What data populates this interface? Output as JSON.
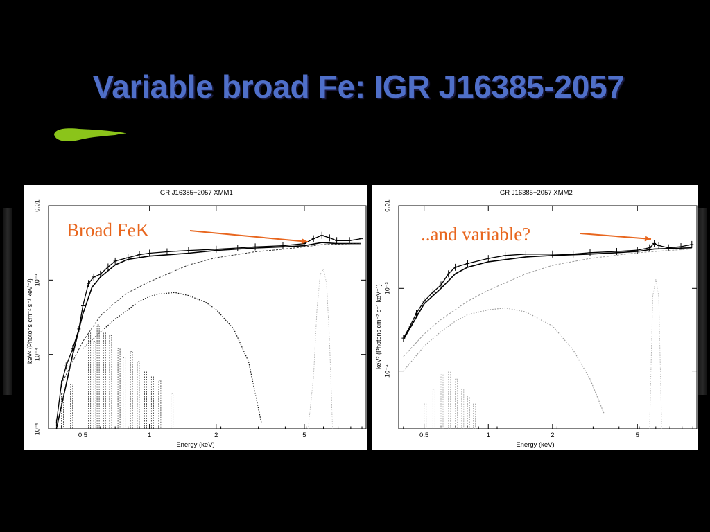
{
  "slide": {
    "title": "Variable broad Fe: IGR J16385-2057",
    "colors": {
      "background": "#000000",
      "title": "#4f6fc9",
      "brush": "#8bc41a",
      "annotation": "#e8661e"
    }
  },
  "chart_data": [
    {
      "type": "line",
      "title": "IGR J16385−2057 XMM1",
      "xlabel": "Energy (keV)",
      "ylabel": "keV² (Photons cm⁻² s⁻¹ keV⁻¹)",
      "xscale": "log",
      "yscale": "log",
      "xlim": [
        0.35,
        9.5
      ],
      "ylim": [
        1e-05,
        0.01
      ],
      "xticks": [
        0.5,
        1,
        2,
        5
      ],
      "xtick_labels": [
        "0.5",
        "1",
        "2",
        "5"
      ],
      "yticks": [
        1e-05,
        0.0001,
        0.001,
        0.01
      ],
      "ytick_labels": [
        "10⁻⁵",
        "10⁻⁴",
        "10⁻³",
        "0.01"
      ],
      "annotation": "Broad FeK",
      "series": [
        {
          "role": "data",
          "points": [
            [
              0.38,
              1.2e-05
            ],
            [
              0.4,
              4e-05
            ],
            [
              0.42,
              7e-05
            ],
            [
              0.45,
              0.00012
            ],
            [
              0.48,
              0.00022
            ],
            [
              0.5,
              0.00045
            ],
            [
              0.53,
              0.0009
            ],
            [
              0.56,
              0.0011
            ],
            [
              0.6,
              0.0012
            ],
            [
              0.65,
              0.0015
            ],
            [
              0.7,
              0.0018
            ],
            [
              0.8,
              0.002
            ],
            [
              0.9,
              0.0022
            ],
            [
              1.0,
              0.0023
            ],
            [
              1.2,
              0.0024
            ],
            [
              1.5,
              0.0025
            ],
            [
              2.0,
              0.0026
            ],
            [
              2.5,
              0.0027
            ],
            [
              3.0,
              0.0028
            ],
            [
              4.0,
              0.0029
            ],
            [
              5.0,
              0.0031
            ],
            [
              5.5,
              0.0036
            ],
            [
              6.0,
              0.004
            ],
            [
              6.5,
              0.0037
            ],
            [
              7.0,
              0.0034
            ],
            [
              8.0,
              0.0034
            ],
            [
              9.0,
              0.0036
            ]
          ]
        },
        {
          "role": "model",
          "points": [
            [
              0.38,
              1e-05
            ],
            [
              0.45,
              0.0001
            ],
            [
              0.5,
              0.00035
            ],
            [
              0.55,
              0.0008
            ],
            [
              0.6,
              0.0011
            ],
            [
              0.7,
              0.0016
            ],
            [
              0.8,
              0.0019
            ],
            [
              1.0,
              0.0021
            ],
            [
              1.5,
              0.0023
            ],
            [
              2.0,
              0.0025
            ],
            [
              3.0,
              0.0027
            ],
            [
              4.0,
              0.0028
            ],
            [
              5.0,
              0.0029
            ],
            [
              6.0,
              0.0032
            ],
            [
              7.0,
              0.0031
            ],
            [
              9.0,
              0.0031
            ]
          ]
        },
        {
          "role": "powerlaw",
          "points": [
            [
              0.4,
              4e-05
            ],
            [
              0.5,
              0.00015
            ],
            [
              0.6,
              0.00033
            ],
            [
              0.7,
              0.0005
            ],
            [
              0.8,
              0.00068
            ],
            [
              1.0,
              0.00095
            ],
            [
              1.5,
              0.0016
            ],
            [
              2.0,
              0.002
            ],
            [
              3.0,
              0.0024
            ],
            [
              4.0,
              0.0026
            ],
            [
              5.0,
              0.0028
            ],
            [
              6.0,
              0.003
            ],
            [
              9.0,
              0.0031
            ]
          ]
        },
        {
          "role": "blackbody",
          "points": [
            [
              0.5,
              0.00012
            ],
            [
              0.6,
              0.0002
            ],
            [
              0.7,
              0.0003
            ],
            [
              0.8,
              0.0004
            ],
            [
              0.9,
              0.00052
            ],
            [
              1.0,
              0.0006
            ],
            [
              1.1,
              0.00065
            ],
            [
              1.3,
              0.00068
            ],
            [
              1.5,
              0.00062
            ],
            [
              1.8,
              0.0005
            ],
            [
              2.0,
              0.0004
            ],
            [
              2.4,
              0.00022
            ],
            [
              2.8,
              8e-05
            ],
            [
              3.2,
              1.2e-05
            ]
          ]
        },
        {
          "role": "lines",
          "points": [
            [
              0.4,
              3e-05
            ],
            [
              0.44,
              4e-05
            ],
            [
              0.5,
              6e-05
            ],
            [
              0.53,
              0.0002
            ],
            [
              0.56,
              0.00015
            ],
            [
              0.58,
              0.00025
            ],
            [
              0.62,
              0.0002
            ],
            [
              0.66,
              0.00018
            ],
            [
              0.72,
              0.00012
            ],
            [
              0.76,
              9e-05
            ],
            [
              0.82,
              0.00011
            ],
            [
              0.88,
              8e-05
            ],
            [
              0.95,
              6e-05
            ],
            [
              1.02,
              5e-05
            ],
            [
              1.1,
              4.5e-05
            ],
            [
              1.25,
              3e-05
            ]
          ]
        },
        {
          "role": "iron_line",
          "points": [
            [
              5.2,
              1e-05
            ],
            [
              5.5,
              5e-05
            ],
            [
              5.7,
              0.0004
            ],
            [
              5.9,
              0.0012
            ],
            [
              6.1,
              0.0014
            ],
            [
              6.3,
              0.0009
            ],
            [
              6.5,
              0.00015
            ],
            [
              6.7,
              1e-05
            ]
          ]
        }
      ]
    },
    {
      "type": "line",
      "title": "IGR J16385−2057 XMM2",
      "xlabel": "Energy (keV)",
      "ylabel": "keV² (Photons cm⁻² s⁻¹ keV⁻¹)",
      "xscale": "log",
      "yscale": "log",
      "xlim": [
        0.38,
        9.5
      ],
      "ylim": [
        2e-05,
        0.01
      ],
      "xticks": [
        0.5,
        1,
        2,
        5
      ],
      "xtick_labels": [
        "0.5",
        "1",
        "2",
        "5"
      ],
      "yticks": [
        0.0001,
        0.001,
        0.01
      ],
      "ytick_labels": [
        "10⁻⁴",
        "10⁻³",
        "0.01"
      ],
      "annotation": "..and variable?",
      "series": [
        {
          "role": "data",
          "points": [
            [
              0.4,
              0.00025
            ],
            [
              0.43,
              0.00035
            ],
            [
              0.46,
              0.0005
            ],
            [
              0.5,
              0.0007
            ],
            [
              0.55,
              0.0009
            ],
            [
              0.6,
              0.0011
            ],
            [
              0.65,
              0.0015
            ],
            [
              0.7,
              0.0018
            ],
            [
              0.8,
              0.002
            ],
            [
              1.0,
              0.0023
            ],
            [
              1.2,
              0.0025
            ],
            [
              1.5,
              0.0026
            ],
            [
              2.0,
              0.0026
            ],
            [
              2.5,
              0.0026
            ],
            [
              3.0,
              0.0027
            ],
            [
              4.0,
              0.0028
            ],
            [
              5.0,
              0.0029
            ],
            [
              5.7,
              0.0031
            ],
            [
              6.0,
              0.0035
            ],
            [
              6.3,
              0.0033
            ],
            [
              7.0,
              0.0031
            ],
            [
              8.0,
              0.0032
            ],
            [
              9.0,
              0.0034
            ]
          ]
        },
        {
          "role": "model",
          "points": [
            [
              0.4,
              0.00024
            ],
            [
              0.5,
              0.00065
            ],
            [
              0.6,
              0.001
            ],
            [
              0.7,
              0.0015
            ],
            [
              0.8,
              0.0018
            ],
            [
              1.0,
              0.0021
            ],
            [
              1.5,
              0.0024
            ],
            [
              2.0,
              0.0025
            ],
            [
              3.0,
              0.0026
            ],
            [
              4.0,
              0.0027
            ],
            [
              5.0,
              0.0028
            ],
            [
              6.0,
              0.003
            ],
            [
              9.0,
              0.0031
            ]
          ]
        },
        {
          "role": "powerlaw",
          "points": [
            [
              0.4,
              0.00015
            ],
            [
              0.5,
              0.00028
            ],
            [
              0.6,
              0.00042
            ],
            [
              0.8,
              0.0007
            ],
            [
              1.0,
              0.00095
            ],
            [
              1.5,
              0.0015
            ],
            [
              2.0,
              0.0019
            ],
            [
              3.0,
              0.0023
            ],
            [
              5.0,
              0.0027
            ],
            [
              9.0,
              0.003
            ]
          ]
        },
        {
          "role": "blackbody",
          "points": [
            [
              0.4,
              0.0001
            ],
            [
              0.5,
              0.0002
            ],
            [
              0.6,
              0.0003
            ],
            [
              0.7,
              0.0004
            ],
            [
              0.8,
              0.00048
            ],
            [
              1.0,
              0.00055
            ],
            [
              1.2,
              0.00058
            ],
            [
              1.5,
              0.00052
            ],
            [
              2.0,
              0.00035
            ],
            [
              2.5,
              0.00018
            ],
            [
              3.0,
              8e-05
            ],
            [
              3.5,
              3e-05
            ]
          ]
        },
        {
          "role": "lines",
          "points": [
            [
              0.5,
              4e-05
            ],
            [
              0.55,
              6e-05
            ],
            [
              0.6,
              9e-05
            ],
            [
              0.65,
              0.0001
            ],
            [
              0.7,
              8e-05
            ],
            [
              0.75,
              6e-05
            ],
            [
              0.8,
              5e-05
            ],
            [
              0.85,
              4e-05
            ]
          ]
        },
        {
          "role": "iron_line",
          "points": [
            [
              5.7,
              2e-05
            ],
            [
              5.9,
              0.0008
            ],
            [
              6.1,
              0.0013
            ],
            [
              6.3,
              0.0008
            ],
            [
              6.5,
              2e-05
            ]
          ]
        }
      ]
    }
  ]
}
